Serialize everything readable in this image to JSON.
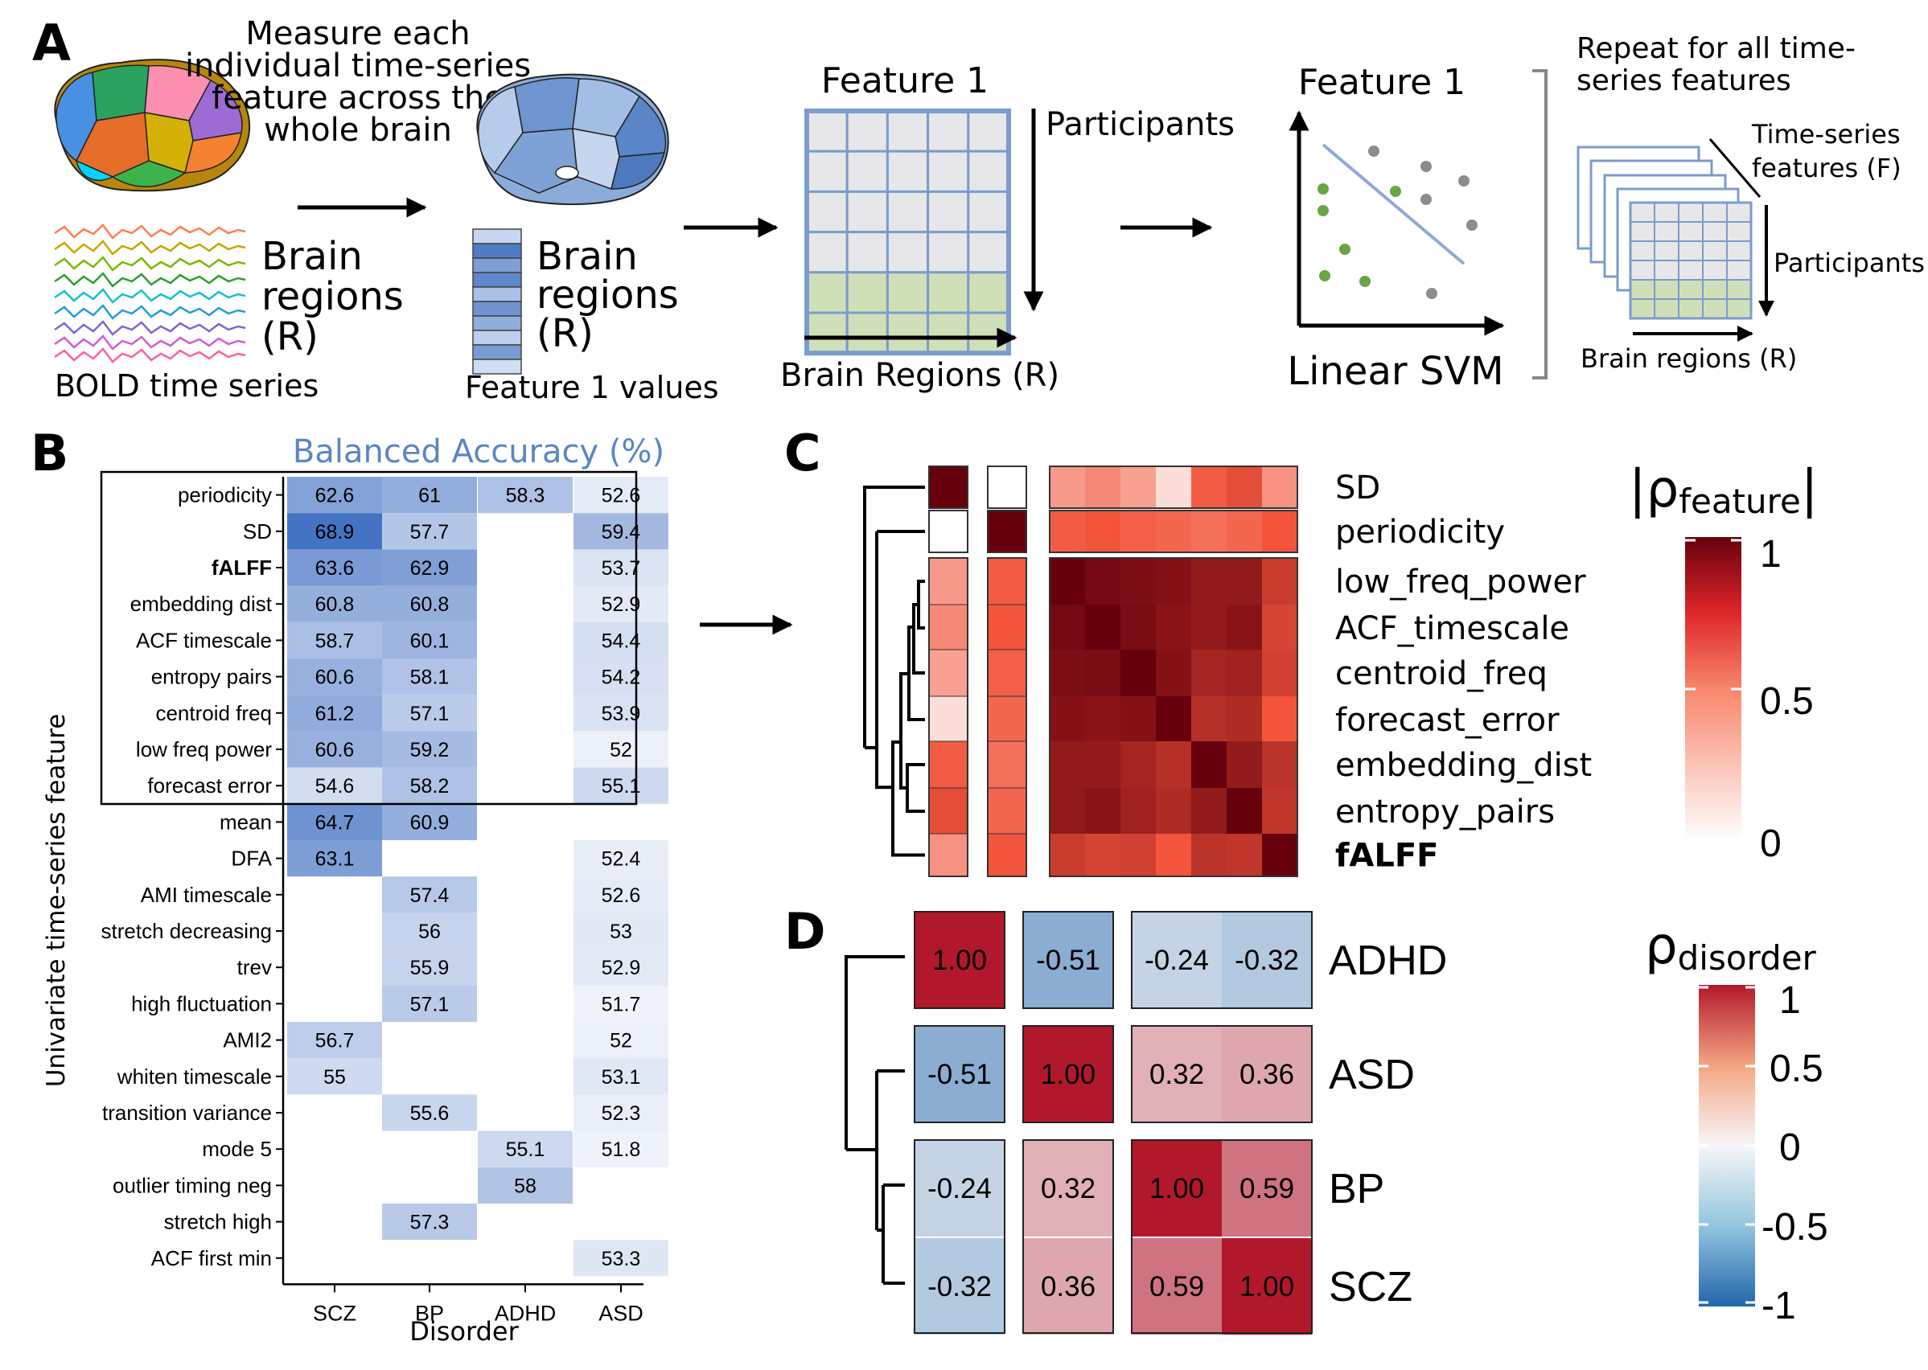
{
  "panel_labels": [
    "A",
    "B",
    "C",
    "D"
  ],
  "panel_a": {
    "measure_text": [
      "Measure each",
      "individual time-series",
      "feature across the",
      "whole brain"
    ],
    "brain_regions_text": [
      "Brain",
      "regions",
      "(R)"
    ],
    "bold_caption": "BOLD time series",
    "feature_values_caption": "Feature 1 values",
    "matrix_title": "Feature 1",
    "participants_label": "Participants",
    "brain_regions_axis": "Brain Regions (R)",
    "svm_title": "Feature 1",
    "svm_caption": "Linear SVM",
    "repeat_text": [
      "Repeat for all time-",
      "series features"
    ],
    "ts_features_text": [
      "Time-series",
      "features (F)"
    ],
    "stack_participants": "Participants",
    "stack_brain_regions": "Brain regions (R)",
    "colors": {
      "matrix_border": "#7b9ccc",
      "grey_cell": "#e7e7e9",
      "green_cell": "#cfe0b9",
      "svm_green": "#6aa444",
      "svm_grey": "#8c8c8c",
      "svm_line": "#8eaad8"
    }
  },
  "panel_b": {
    "title": "Balanced Accuracy (%)",
    "title_color": "#5a86c4",
    "ylabel": "Univariate time-series feature",
    "xlabel": "Disorder",
    "columns": [
      "SCZ",
      "BP",
      "ADHD",
      "ASD"
    ],
    "rows": [
      {
        "name": "periodicity",
        "bold": false,
        "values": [
          "62.6",
          "61",
          "58.3",
          "52.6"
        ]
      },
      {
        "name": "SD",
        "bold": false,
        "values": [
          "68.9",
          "57.7",
          "",
          "59.4"
        ]
      },
      {
        "name": "fALFF",
        "bold": true,
        "values": [
          "63.6",
          "62.9",
          "",
          "53.7"
        ]
      },
      {
        "name": "embedding dist",
        "bold": false,
        "values": [
          "60.8",
          "60.8",
          "",
          "52.9"
        ]
      },
      {
        "name": "ACF timescale",
        "bold": false,
        "values": [
          "58.7",
          "60.1",
          "",
          "54.4"
        ]
      },
      {
        "name": "entropy pairs",
        "bold": false,
        "values": [
          "60.6",
          "58.1",
          "",
          "54.2"
        ]
      },
      {
        "name": "centroid freq",
        "bold": false,
        "values": [
          "61.2",
          "57.1",
          "",
          "53.9"
        ]
      },
      {
        "name": "low freq power",
        "bold": false,
        "values": [
          "60.6",
          "59.2",
          "",
          "52"
        ]
      },
      {
        "name": "forecast error",
        "bold": false,
        "values": [
          "54.6",
          "58.2",
          "",
          "55.1"
        ]
      },
      {
        "name": "mean",
        "bold": false,
        "values": [
          "64.7",
          "60.9",
          "",
          ""
        ]
      },
      {
        "name": "DFA",
        "bold": false,
        "values": [
          "63.1",
          "",
          "",
          "52.4"
        ]
      },
      {
        "name": "AMI timescale",
        "bold": false,
        "values": [
          "",
          "57.4",
          "",
          "52.6"
        ]
      },
      {
        "name": "stretch decreasing",
        "bold": false,
        "values": [
          "",
          "56",
          "",
          "53"
        ]
      },
      {
        "name": "trev",
        "bold": false,
        "values": [
          "",
          "55.9",
          "",
          "52.9"
        ]
      },
      {
        "name": "high fluctuation",
        "bold": false,
        "values": [
          "",
          "57.1",
          "",
          "51.7"
        ]
      },
      {
        "name": "AMI2",
        "bold": false,
        "values": [
          "56.7",
          "",
          "",
          "52"
        ]
      },
      {
        "name": "whiten timescale",
        "bold": false,
        "values": [
          "55",
          "",
          "",
          "53.1"
        ]
      },
      {
        "name": "transition variance",
        "bold": false,
        "values": [
          "",
          "55.6",
          "",
          "52.3"
        ]
      },
      {
        "name": "mode 5",
        "bold": false,
        "values": [
          "",
          "",
          "55.1",
          "51.8"
        ]
      },
      {
        "name": "outlier timing neg",
        "bold": false,
        "values": [
          "",
          "",
          "58",
          ""
        ]
      },
      {
        "name": "stretch high",
        "bold": false,
        "values": [
          "",
          "57.3",
          "",
          ""
        ]
      },
      {
        "name": "ACF first min",
        "bold": false,
        "values": [
          "",
          "",
          "",
          "53.3"
        ]
      }
    ],
    "color_low": "#f1f4fa",
    "color_high": "#4472c4"
  },
  "panel_c": {
    "rows": [
      "SD",
      "periodicity",
      "low_freq_power",
      "ACF_timescale",
      "centroid_freq",
      "forecast_error",
      "embedding_dist",
      "entropy_pairs",
      "fALFF"
    ],
    "bold_rows": [
      "fALFF"
    ],
    "matrix": [
      [
        1.0,
        0.0,
        0.3,
        0.35,
        0.28,
        0.1,
        0.48,
        0.55,
        0.32
      ],
      [
        0.0,
        1.0,
        0.48,
        0.5,
        0.47,
        0.45,
        0.42,
        0.45,
        0.5
      ],
      [
        0.3,
        0.48,
        1.0,
        0.95,
        0.92,
        0.9,
        0.85,
        0.85,
        0.65
      ],
      [
        0.35,
        0.5,
        0.95,
        1.0,
        0.93,
        0.88,
        0.84,
        0.88,
        0.6
      ],
      [
        0.28,
        0.47,
        0.92,
        0.93,
        1.0,
        0.9,
        0.78,
        0.8,
        0.62
      ],
      [
        0.1,
        0.45,
        0.9,
        0.88,
        0.9,
        1.0,
        0.72,
        0.74,
        0.5
      ],
      [
        0.48,
        0.42,
        0.85,
        0.84,
        0.78,
        0.72,
        1.0,
        0.85,
        0.7
      ],
      [
        0.55,
        0.45,
        0.85,
        0.88,
        0.8,
        0.74,
        0.85,
        1.0,
        0.68
      ],
      [
        0.32,
        0.5,
        0.65,
        0.6,
        0.62,
        0.5,
        0.7,
        0.68,
        1.0
      ]
    ],
    "legend_title": "|ρfeature|",
    "legend_ticks": [
      "1",
      "0.5",
      "0"
    ],
    "color_low": "#ffffff",
    "color_mid": "#f2553c",
    "color_high": "#67000d"
  },
  "panel_d": {
    "labels": [
      "ADHD",
      "ASD",
      "BP",
      "SCZ"
    ],
    "matrix": [
      [
        "1.00",
        "-0.51",
        "-0.24",
        "-0.32"
      ],
      [
        "-0.51",
        "1.00",
        "0.32",
        "0.36"
      ],
      [
        "-0.24",
        "0.32",
        "1.00",
        "0.59"
      ],
      [
        "-0.32",
        "0.36",
        "0.59",
        "1.00"
      ]
    ],
    "legend_title": "ρdisorder",
    "legend_ticks": [
      "1",
      "0.5",
      "0",
      "-0.5",
      "-1"
    ],
    "color_neg": "#2166ac",
    "color_zero": "#f7f7f7",
    "color_pos": "#b2182b"
  }
}
